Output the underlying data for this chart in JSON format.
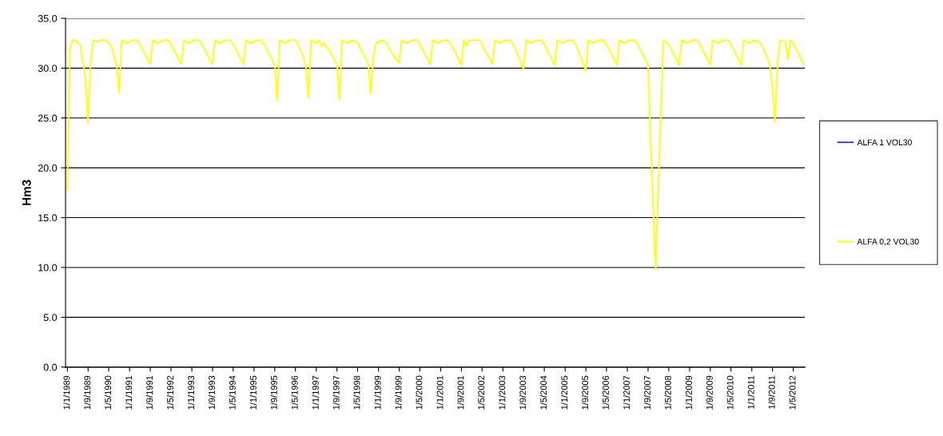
{
  "chart_data": {
    "type": "line",
    "ylabel": "Hm3",
    "x": [
      "1989-01",
      "1989-02",
      "1989-03",
      "1989-04",
      "1989-06",
      "1989-08",
      "1989-09",
      "1989-10",
      "1989-11",
      "1990-01",
      "1990-02",
      "1990-04",
      "1990-06",
      "1990-08",
      "1990-09",
      "1990-10",
      "1990-12",
      "1991-02",
      "1991-04",
      "1991-05",
      "1991-07",
      "1991-09",
      "1991-10",
      "1991-12",
      "1992-02",
      "1992-04",
      "1992-05",
      "1992-07",
      "1992-09",
      "1992-10",
      "1992-12",
      "1993-02",
      "1993-04",
      "1993-05",
      "1993-07",
      "1993-09",
      "1993-10",
      "1993-12",
      "1994-02",
      "1994-04",
      "1994-05",
      "1994-07",
      "1994-09",
      "1994-10",
      "1994-12",
      "1995-02",
      "1995-04",
      "1995-05",
      "1995-07",
      "1995-09",
      "1995-10",
      "1995-11",
      "1996-01",
      "1996-03",
      "1996-05",
      "1996-06",
      "1996-08",
      "1996-09",
      "1996-10",
      "1996-11",
      "1997-01",
      "1997-02",
      "1997-03",
      "1997-04",
      "1997-06",
      "1997-09",
      "1997-10",
      "1997-11",
      "1998-01",
      "1998-03",
      "1998-05",
      "1998-07",
      "1998-09",
      "1998-10",
      "1998-11",
      "1998-12",
      "1999-02",
      "1999-04",
      "1999-06",
      "1999-09",
      "1999-10",
      "1999-12",
      "2000-02",
      "2000-04",
      "2000-05",
      "2000-07",
      "2000-09",
      "2000-10",
      "2000-12",
      "2001-02",
      "2001-04",
      "2001-05",
      "2001-07",
      "2001-09",
      "2001-10",
      "2001-11",
      "2001-12",
      "2002-02",
      "2002-04",
      "2002-05",
      "2002-07",
      "2002-09",
      "2002-10",
      "2002-12",
      "2003-02",
      "2003-04",
      "2003-05",
      "2003-07",
      "2003-09",
      "2003-10",
      "2003-12",
      "2004-02",
      "2004-04",
      "2004-05",
      "2004-07",
      "2004-09",
      "2004-10",
      "2004-12",
      "2005-02",
      "2005-04",
      "2005-05",
      "2005-07",
      "2005-09",
      "2005-10",
      "2005-12",
      "2006-02",
      "2006-04",
      "2006-05",
      "2006-07",
      "2006-09",
      "2006-10",
      "2006-12",
      "2007-02",
      "2007-04",
      "2007-05",
      "2007-07",
      "2007-09",
      "2007-10",
      "2007-11",
      "2007-12",
      "2008-01",
      "2008-02",
      "2008-03",
      "2008-05",
      "2008-07",
      "2008-09",
      "2008-10",
      "2008-12",
      "2009-02",
      "2009-04",
      "2009-05",
      "2009-07",
      "2009-09",
      "2009-10",
      "2009-12",
      "2010-02",
      "2010-04",
      "2010-05",
      "2010-07",
      "2010-09",
      "2010-10",
      "2010-12",
      "2011-02",
      "2011-04",
      "2011-06",
      "2011-08",
      "2011-09",
      "2011-10",
      "2011-11",
      "2011-12",
      "2012-01",
      "2012-02",
      "2012-03",
      "2012-04",
      "2012-05",
      "2012-07",
      "2012-09"
    ],
    "series": [
      {
        "name": "ALFA 1 VOL30",
        "color": "#333399",
        "values": [
          null,
          null,
          null,
          null,
          null,
          null,
          null,
          null,
          null,
          null,
          null,
          null,
          null,
          null,
          null,
          null,
          null,
          null,
          null,
          null,
          null,
          null,
          null,
          null,
          null,
          null,
          null,
          null,
          null,
          null,
          null,
          null,
          null,
          null,
          null,
          null,
          null,
          null,
          null,
          null,
          null,
          null,
          null,
          null,
          null,
          null,
          null,
          null,
          null,
          null,
          null,
          null,
          null,
          null,
          null,
          null,
          null,
          null,
          null,
          null,
          null,
          null,
          null,
          null,
          null,
          null,
          null,
          null,
          null,
          null,
          null,
          null,
          null,
          null,
          null,
          null,
          null,
          null,
          null,
          null,
          null,
          null,
          null,
          null,
          null,
          null,
          null,
          null,
          null,
          null,
          null,
          null,
          null,
          null,
          null,
          null,
          null,
          null,
          null,
          null,
          null,
          null,
          null,
          null,
          null,
          null,
          null,
          null,
          null,
          null,
          null,
          null,
          null,
          null,
          null,
          null,
          null,
          null,
          null,
          null,
          null,
          null,
          null,
          null,
          null,
          null,
          null,
          null,
          null,
          null,
          null,
          null,
          null,
          null,
          null,
          null,
          null,
          null,
          null,
          null,
          null,
          null,
          null,
          null,
          null,
          null,
          null,
          null,
          null,
          null,
          null,
          null,
          null,
          null,
          null,
          null,
          null,
          null,
          null,
          null,
          null,
          null,
          null,
          null,
          null,
          null,
          null,
          null,
          null,
          null,
          null,
          null,
          null,
          null,
          null,
          null,
          null
        ]
      },
      {
        "name": "ALFA 0,2 VOL30",
        "color": "#ffff00",
        "values": [
          17.8,
          32.0,
          32.8,
          32.8,
          32.3,
          29.0,
          24.5,
          30.5,
          32.8,
          32.6,
          32.8,
          32.8,
          32.2,
          30.3,
          27.5,
          32.8,
          32.5,
          32.8,
          32.8,
          32.4,
          31.4,
          30.4,
          32.8,
          32.5,
          32.8,
          32.8,
          32.4,
          31.4,
          30.4,
          32.8,
          32.5,
          32.8,
          32.8,
          32.4,
          31.4,
          30.4,
          32.8,
          32.5,
          32.8,
          32.8,
          32.4,
          31.4,
          30.4,
          32.8,
          32.5,
          32.8,
          32.8,
          32.4,
          31.4,
          30.3,
          26.7,
          32.8,
          32.5,
          32.8,
          32.8,
          32.4,
          31.2,
          30.2,
          27.0,
          32.8,
          32.5,
          32.8,
          32.2,
          32.5,
          31.8,
          30.4,
          26.8,
          32.8,
          32.5,
          32.8,
          32.6,
          31.5,
          30.6,
          27.4,
          31.0,
          32.5,
          32.8,
          32.6,
          31.6,
          30.5,
          32.8,
          32.5,
          32.8,
          32.8,
          32.4,
          31.4,
          30.4,
          32.8,
          32.5,
          32.8,
          32.8,
          32.4,
          31.4,
          30.3,
          32.8,
          32.2,
          32.8,
          32.8,
          32.8,
          32.4,
          31.4,
          30.4,
          32.8,
          32.5,
          32.8,
          32.8,
          32.4,
          31.2,
          29.9,
          32.8,
          32.5,
          32.8,
          32.8,
          32.4,
          31.4,
          30.3,
          32.8,
          32.5,
          32.8,
          32.8,
          32.4,
          31.2,
          29.7,
          32.8,
          32.5,
          32.8,
          32.8,
          32.4,
          31.4,
          30.3,
          32.8,
          32.5,
          32.8,
          32.8,
          32.4,
          31.4,
          30.4,
          23.0,
          16.0,
          9.8,
          18.5,
          26.0,
          32.8,
          32.4,
          31.4,
          30.3,
          32.8,
          32.5,
          32.8,
          32.8,
          32.4,
          31.4,
          30.3,
          32.8,
          32.5,
          32.8,
          32.8,
          32.4,
          31.4,
          30.3,
          32.8,
          32.5,
          32.8,
          32.6,
          31.7,
          30.4,
          28.0,
          24.6,
          30.5,
          32.8,
          32.8,
          32.6,
          30.9,
          32.8,
          32.5,
          31.5,
          30.4
        ]
      }
    ],
    "xlim": [
      "1988-12-10",
      "2012-09-15"
    ],
    "xticks": [
      {
        "value": "1989-01-01",
        "label": "1/1/1989"
      },
      {
        "value": "1989-09-01",
        "label": "1/9/1989"
      },
      {
        "value": "1990-05-01",
        "label": "1/5/1990"
      },
      {
        "value": "1991-01-01",
        "label": "1/1/1991"
      },
      {
        "value": "1991-09-01",
        "label": "1/9/1991"
      },
      {
        "value": "1992-05-01",
        "label": "1/5/1992"
      },
      {
        "value": "1993-01-01",
        "label": "1/1/1993"
      },
      {
        "value": "1993-09-01",
        "label": "1/9/1993"
      },
      {
        "value": "1994-05-01",
        "label": "1/5/1994"
      },
      {
        "value": "1995-01-01",
        "label": "1/1/1995"
      },
      {
        "value": "1995-09-01",
        "label": "1/9/1995"
      },
      {
        "value": "1996-05-01",
        "label": "1/5/1996"
      },
      {
        "value": "1997-01-01",
        "label": "1/1/1997"
      },
      {
        "value": "1997-09-01",
        "label": "1/9/1997"
      },
      {
        "value": "1998-05-01",
        "label": "1/5/1998"
      },
      {
        "value": "1999-01-01",
        "label": "1/1/1999"
      },
      {
        "value": "1999-09-01",
        "label": "1/9/1999"
      },
      {
        "value": "2000-05-01",
        "label": "1/5/2000"
      },
      {
        "value": "2001-01-01",
        "label": "1/1/2001"
      },
      {
        "value": "2001-09-01",
        "label": "1/9/2001"
      },
      {
        "value": "2002-05-01",
        "label": "1/5/2002"
      },
      {
        "value": "2003-01-01",
        "label": "1/1/2003"
      },
      {
        "value": "2003-09-01",
        "label": "1/9/2003"
      },
      {
        "value": "2004-05-01",
        "label": "1/5/2004"
      },
      {
        "value": "2005-01-01",
        "label": "1/1/2005"
      },
      {
        "value": "2005-09-01",
        "label": "1/9/2005"
      },
      {
        "value": "2006-05-01",
        "label": "1/5/2006"
      },
      {
        "value": "2007-01-01",
        "label": "1/1/2007"
      },
      {
        "value": "2007-09-01",
        "label": "1/9/2007"
      },
      {
        "value": "2008-05-01",
        "label": "1/5/2008"
      },
      {
        "value": "2009-01-01",
        "label": "1/1/2009"
      },
      {
        "value": "2009-09-01",
        "label": "1/9/2009"
      },
      {
        "value": "2010-05-01",
        "label": "1/5/2010"
      },
      {
        "value": "2011-01-01",
        "label": "1/1/2011"
      },
      {
        "value": "2011-09-01",
        "label": "1/9/2011"
      },
      {
        "value": "2012-05-01",
        "label": "1/5/2012"
      }
    ],
    "ylim": [
      0,
      35
    ],
    "yticks": [
      {
        "value": 0,
        "label": "0.0"
      },
      {
        "value": 5,
        "label": "5.0"
      },
      {
        "value": 10,
        "label": "10.0"
      },
      {
        "value": 15,
        "label": "15.0"
      },
      {
        "value": 20,
        "label": "20.0"
      },
      {
        "value": 25,
        "label": "25.0"
      },
      {
        "value": 30,
        "label": "30.0"
      },
      {
        "value": 35,
        "label": "35.0"
      }
    ],
    "grid": "y",
    "legend": "right",
    "marker": "none",
    "line_style": "solid"
  }
}
